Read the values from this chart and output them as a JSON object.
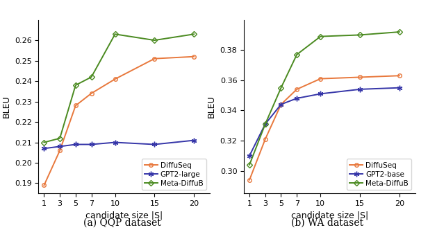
{
  "x": [
    1,
    3,
    5,
    7,
    10,
    15,
    20
  ],
  "qqp": {
    "diffuseq": [
      0.189,
      0.206,
      0.228,
      0.234,
      0.241,
      0.251,
      0.252
    ],
    "gpt2_large": [
      0.207,
      0.208,
      0.209,
      0.209,
      0.21,
      0.209,
      0.211
    ],
    "meta_diffub": [
      0.21,
      0.212,
      0.238,
      0.242,
      0.263,
      0.26,
      0.263
    ]
  },
  "wa": {
    "diffuseq": [
      0.294,
      0.321,
      0.344,
      0.354,
      0.361,
      0.362,
      0.363
    ],
    "gpt2_base": [
      0.31,
      0.331,
      0.344,
      0.348,
      0.351,
      0.354,
      0.355
    ],
    "meta_diffub": [
      0.304,
      0.331,
      0.355,
      0.377,
      0.389,
      0.39,
      0.392
    ]
  },
  "colors": {
    "diffuseq": "#E8783C",
    "gpt2": "#3535A8",
    "meta_diffub": "#4A8A20"
  },
  "caption_qqp": "(a) QQP dataset",
  "caption_wa": "(b) WA dataset",
  "xlabel": "candidate size |S|",
  "ylabel": "BLEU",
  "qqp_ylim": [
    0.185,
    0.27
  ],
  "wa_ylim": [
    0.285,
    0.4
  ],
  "qqp_yticks": [
    0.19,
    0.2,
    0.21,
    0.22,
    0.23,
    0.24,
    0.25,
    0.26
  ],
  "wa_yticks": [
    0.3,
    0.32,
    0.34,
    0.36,
    0.38
  ],
  "legend_qqp": [
    "DiffuSeq",
    "GPT2-large",
    "Meta-DiffuB"
  ],
  "legend_wa": [
    "DiffuSeq",
    "GPT2-base",
    "Meta-DiffuB"
  ]
}
